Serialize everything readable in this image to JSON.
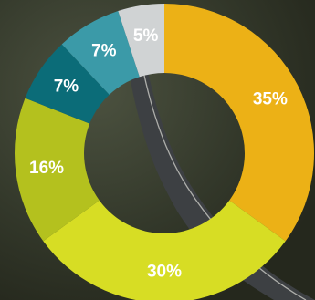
{
  "chart_data": {
    "type": "pie",
    "donut": true,
    "title": "",
    "slices": [
      {
        "label": "35%",
        "value": 35,
        "color": "#ecb116"
      },
      {
        "label": "30%",
        "value": 30,
        "color": "#d7dd24"
      },
      {
        "label": "16%",
        "value": 16,
        "color": "#b4c11e"
      },
      {
        "label": "7%",
        "value": 7,
        "color": "#0b6c78"
      },
      {
        "label": "7%",
        "value": 7,
        "color": "#3b9aa8"
      },
      {
        "label": "5%",
        "value": 5,
        "color": "#d0d3d4"
      }
    ]
  },
  "background": {
    "subject": "aerial view of road through trees"
  }
}
